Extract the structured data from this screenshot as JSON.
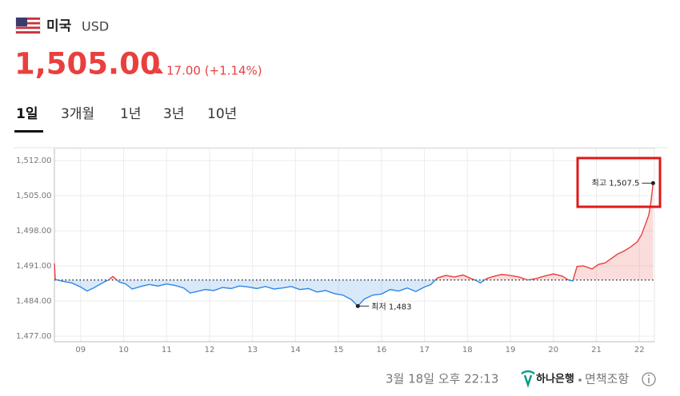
{
  "header": {
    "country": "미국",
    "currency": "USD",
    "price": "1,505.00",
    "change": "17.00 (+1.14%)"
  },
  "tabs": [
    "1일",
    "3개월",
    "1년",
    "3년",
    "10년"
  ],
  "chart_data": {
    "type": "line",
    "x": [
      8.39,
      8.41,
      8.6,
      8.8,
      9.0,
      9.15,
      9.3,
      9.5,
      9.65,
      9.75,
      9.9,
      10.05,
      10.2,
      10.4,
      10.6,
      10.8,
      11.0,
      11.2,
      11.4,
      11.55,
      11.7,
      11.9,
      12.1,
      12.3,
      12.5,
      12.7,
      12.9,
      13.1,
      13.3,
      13.5,
      13.7,
      13.9,
      14.1,
      14.3,
      14.5,
      14.7,
      14.9,
      15.1,
      15.3,
      15.45,
      15.6,
      15.8,
      16.0,
      16.2,
      16.4,
      16.6,
      16.8,
      17.0,
      17.15,
      17.3,
      17.5,
      17.7,
      17.9,
      18.05,
      18.2,
      18.3,
      18.45,
      18.6,
      18.8,
      19.0,
      19.2,
      19.4,
      19.6,
      19.8,
      20.0,
      20.2,
      20.35,
      20.45,
      20.55,
      20.7,
      20.9,
      21.05,
      21.2,
      21.35,
      21.5,
      21.65,
      21.8,
      21.95,
      22.05,
      22.15,
      22.22,
      22.27,
      22.32
    ],
    "series": [
      {
        "values": [
          1491.5,
          1488.3,
          1487.9,
          1487.6,
          1486.8,
          1486.0,
          1486.6,
          1487.6,
          1488.2,
          1488.9,
          1487.8,
          1487.4,
          1486.4,
          1486.9,
          1487.3,
          1487.0,
          1487.4,
          1487.1,
          1486.6,
          1485.6,
          1485.9,
          1486.3,
          1486.1,
          1486.7,
          1486.5,
          1487.0,
          1486.8,
          1486.5,
          1486.9,
          1486.4,
          1486.6,
          1486.9,
          1486.3,
          1486.5,
          1485.8,
          1486.1,
          1485.5,
          1485.2,
          1484.3,
          1483.0,
          1484.4,
          1485.2,
          1485.4,
          1486.3,
          1486.0,
          1486.6,
          1485.9,
          1486.8,
          1487.3,
          1488.6,
          1489.1,
          1488.8,
          1489.2,
          1488.6,
          1488.1,
          1487.6,
          1488.5,
          1488.9,
          1489.3,
          1489.1,
          1488.8,
          1488.2,
          1488.5,
          1489.0,
          1489.4,
          1489.0,
          1488.2,
          1488.0,
          1490.9,
          1491.0,
          1490.4,
          1491.3,
          1491.6,
          1492.5,
          1493.4,
          1494.0,
          1494.8,
          1495.8,
          1497.2,
          1499.5,
          1501.2,
          1503.8,
          1507.5
        ]
      }
    ],
    "baseline": 1488.2,
    "color_above": "#e8403f",
    "color_below": "#2f86e6",
    "xlim": [
      8.39,
      22.35
    ],
    "ylim": [
      1475.9,
      1514.4
    ],
    "xticks": [
      {
        "value": 9,
        "label": "09"
      },
      10,
      11,
      12,
      13,
      14,
      15,
      16,
      17,
      18,
      19,
      20,
      21,
      22
    ],
    "yticks": [
      {
        "value": 1477,
        "label": "1,477.00"
      },
      {
        "value": 1484,
        "label": "1,484.00"
      },
      {
        "value": 1491,
        "label": "1,491.00"
      },
      {
        "value": 1498,
        "label": "1,498.00"
      },
      {
        "value": 1505,
        "label": "1,505.00"
      },
      {
        "value": 1512,
        "label": "1,512.00"
      }
    ],
    "grid": true,
    "annotations": {
      "max": "최고 1,507.5",
      "min": "최저 1,483"
    }
  },
  "footer": {
    "timestamp": "3월 18일 오후 22:13",
    "bank": "하나은행",
    "disclaimer": "면책조항"
  }
}
